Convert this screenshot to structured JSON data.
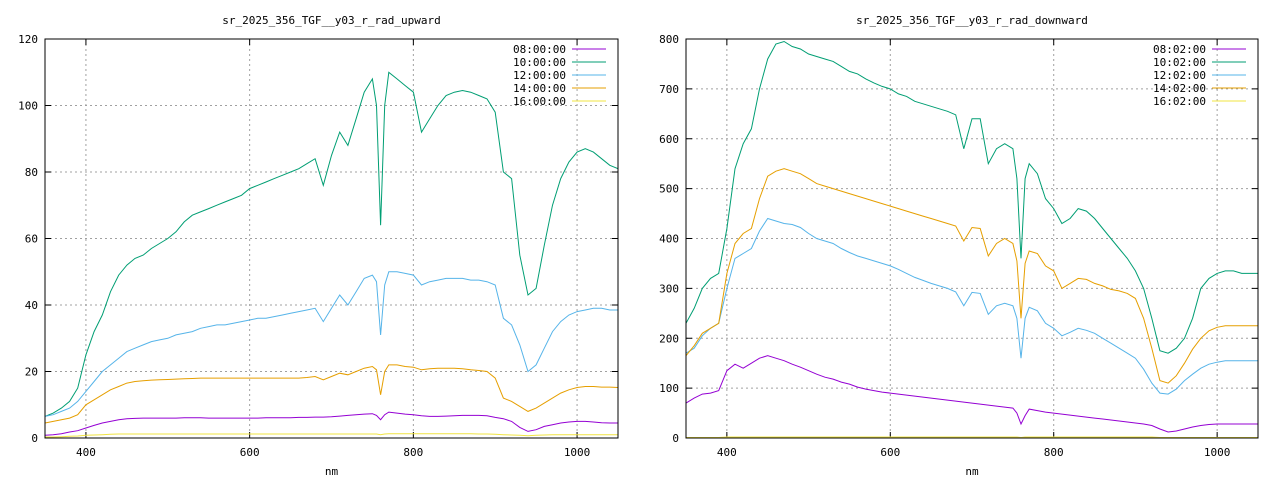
{
  "chart_data": [
    {
      "type": "line",
      "title": "sr_2025_356_TGF__y03_r_rad_upward",
      "xlabel": "nm",
      "ylabel": "",
      "xlim": [
        350,
        1050
      ],
      "ylim": [
        0,
        120
      ],
      "xticks": [
        400,
        600,
        800,
        1000
      ],
      "yticks": [
        0,
        20,
        40,
        60,
        80,
        100,
        120
      ],
      "grid": true,
      "legend_position": "top-right",
      "x": [
        350,
        360,
        370,
        380,
        390,
        400,
        410,
        420,
        430,
        440,
        450,
        460,
        470,
        480,
        490,
        500,
        510,
        520,
        530,
        540,
        550,
        560,
        570,
        580,
        590,
        600,
        610,
        620,
        630,
        640,
        650,
        660,
        670,
        680,
        690,
        700,
        710,
        720,
        730,
        740,
        750,
        755,
        760,
        765,
        770,
        780,
        790,
        800,
        810,
        820,
        830,
        840,
        850,
        860,
        870,
        880,
        890,
        900,
        910,
        920,
        930,
        940,
        950,
        960,
        970,
        980,
        990,
        1000,
        1010,
        1020,
        1030,
        1040,
        1050
      ],
      "series": [
        {
          "name": "08:00:00",
          "color": "#9400d3",
          "values": [
            0.8,
            1,
            1.3,
            1.8,
            2.2,
            3,
            3.8,
            4.5,
            5,
            5.5,
            5.8,
            5.9,
            6,
            6,
            6,
            6,
            6,
            6.1,
            6.1,
            6.1,
            6,
            6,
            6,
            6,
            6,
            6,
            6,
            6.1,
            6.1,
            6.1,
            6.1,
            6.2,
            6.2,
            6.3,
            6.3,
            6.4,
            6.6,
            6.8,
            7,
            7.2,
            7.3,
            6.8,
            5.5,
            7,
            7.8,
            7.5,
            7.2,
            7,
            6.7,
            6.5,
            6.5,
            6.6,
            6.7,
            6.8,
            6.8,
            6.8,
            6.7,
            6.2,
            5.8,
            5,
            3.2,
            2,
            2.5,
            3.5,
            4,
            4.5,
            4.8,
            5,
            5,
            4.8,
            4.6,
            4.5,
            4.5
          ]
        },
        {
          "name": "10:00:00",
          "color": "#009e73",
          "values": [
            6.5,
            7.5,
            9,
            11,
            15,
            25,
            32,
            37,
            44,
            49,
            52,
            54,
            55,
            57,
            58.5,
            60,
            62,
            65,
            67,
            68,
            69,
            70,
            71,
            72,
            73,
            75,
            76,
            77,
            78,
            79,
            80,
            81,
            82.5,
            84,
            76,
            85,
            92,
            88,
            96,
            104,
            108,
            100,
            64,
            100,
            110,
            108,
            106,
            104,
            92,
            96,
            100,
            103,
            104,
            104.5,
            104,
            103,
            102,
            98,
            80,
            78,
            55,
            43,
            45,
            58,
            70,
            78,
            83,
            86,
            87,
            86,
            84,
            82,
            81
          ]
        },
        {
          "name": "12:00:00",
          "color": "#56b4e9",
          "values": [
            6.5,
            7,
            8,
            9,
            11,
            14,
            17,
            20,
            22,
            24,
            26,
            27,
            28,
            29,
            29.5,
            30,
            31,
            31.5,
            32,
            33,
            33.5,
            34,
            34,
            34.5,
            35,
            35.5,
            36,
            36,
            36.5,
            37,
            37.5,
            38,
            38.5,
            39,
            35,
            39,
            43,
            40,
            44,
            48,
            49,
            47,
            31,
            46,
            50,
            50,
            49.5,
            49,
            46,
            47,
            47.5,
            48,
            48,
            48,
            47.5,
            47.5,
            47,
            46,
            36,
            34,
            28,
            20,
            22,
            27,
            32,
            35,
            37,
            38,
            38.5,
            39,
            39,
            38.5,
            38.5
          ]
        },
        {
          "name": "14:00:00",
          "color": "#e69f00",
          "values": [
            4.5,
            5,
            5.5,
            6,
            7,
            10,
            11.5,
            13,
            14.5,
            15.5,
            16.5,
            17,
            17.2,
            17.4,
            17.5,
            17.6,
            17.7,
            17.8,
            17.9,
            18,
            18,
            18,
            18,
            18,
            18,
            18,
            18,
            18,
            18,
            18,
            18,
            18,
            18.2,
            18.5,
            17.5,
            18.5,
            19.5,
            19,
            20,
            21,
            21.5,
            20.5,
            13,
            20,
            22,
            22,
            21.5,
            21.3,
            20.5,
            20.8,
            21,
            21,
            21,
            20.8,
            20.5,
            20.3,
            20,
            18,
            12,
            11,
            9.5,
            8,
            9,
            10.5,
            12,
            13.5,
            14.5,
            15.2,
            15.5,
            15.5,
            15.3,
            15.3,
            15.2
          ]
        },
        {
          "name": "16:00:00",
          "color": "#f0e442",
          "values": [
            0.3,
            0.3,
            0.4,
            0.5,
            0.6,
            0.8,
            0.9,
            1,
            1.1,
            1.2,
            1.2,
            1.2,
            1.2,
            1.2,
            1.2,
            1.2,
            1.2,
            1.2,
            1.2,
            1.2,
            1.2,
            1.2,
            1.2,
            1.2,
            1.2,
            1.2,
            1.2,
            1.2,
            1.2,
            1.2,
            1.2,
            1.2,
            1.2,
            1.2,
            1.2,
            1.2,
            1.2,
            1.2,
            1.2,
            1.2,
            1.2,
            1.2,
            1,
            1.2,
            1.3,
            1.3,
            1.3,
            1.3,
            1.3,
            1.3,
            1.3,
            1.3,
            1.3,
            1.3,
            1.3,
            1.2,
            1.2,
            1.1,
            1,
            0.9,
            0.8,
            0.7,
            0.8,
            0.9,
            1,
            1,
            1,
            1,
            1,
            1,
            1,
            1,
            1
          ]
        }
      ]
    },
    {
      "type": "line",
      "title": "sr_2025_356_TGF__y03_r_rad_downward",
      "xlabel": "nm",
      "ylabel": "",
      "xlim": [
        350,
        1050
      ],
      "ylim": [
        0,
        800
      ],
      "xticks": [
        400,
        600,
        800,
        1000
      ],
      "yticks": [
        0,
        100,
        200,
        300,
        400,
        500,
        600,
        700,
        800
      ],
      "grid": true,
      "legend_position": "top-right",
      "x": [
        350,
        360,
        370,
        380,
        390,
        400,
        410,
        420,
        430,
        440,
        450,
        460,
        470,
        480,
        490,
        500,
        510,
        520,
        530,
        540,
        550,
        560,
        570,
        580,
        590,
        600,
        610,
        620,
        630,
        640,
        650,
        660,
        670,
        680,
        690,
        700,
        710,
        720,
        730,
        740,
        750,
        755,
        760,
        765,
        770,
        780,
        790,
        800,
        810,
        820,
        830,
        840,
        850,
        860,
        870,
        880,
        890,
        900,
        910,
        920,
        930,
        940,
        950,
        960,
        970,
        980,
        990,
        1000,
        1010,
        1020,
        1030,
        1040,
        1050
      ],
      "series": [
        {
          "name": "08:02:00",
          "color": "#9400d3",
          "values": [
            70,
            80,
            88,
            90,
            95,
            135,
            148,
            140,
            150,
            160,
            165,
            160,
            155,
            148,
            142,
            135,
            128,
            122,
            118,
            112,
            108,
            102,
            98,
            95,
            92,
            90,
            88,
            86,
            84,
            82,
            80,
            78,
            76,
            74,
            72,
            70,
            68,
            66,
            64,
            62,
            60,
            50,
            28,
            45,
            58,
            55,
            52,
            50,
            48,
            46,
            44,
            42,
            40,
            38,
            36,
            34,
            32,
            30,
            28,
            25,
            18,
            12,
            14,
            18,
            22,
            25,
            27,
            28,
            28,
            28,
            28,
            28,
            28
          ]
        },
        {
          "name": "10:02:00",
          "color": "#009e73",
          "values": [
            230,
            260,
            300,
            320,
            330,
            420,
            540,
            590,
            620,
            700,
            760,
            790,
            795,
            785,
            780,
            770,
            765,
            760,
            755,
            745,
            735,
            730,
            720,
            712,
            705,
            700,
            690,
            685,
            675,
            670,
            665,
            660,
            655,
            648,
            580,
            640,
            640,
            550,
            580,
            590,
            580,
            520,
            360,
            520,
            550,
            530,
            480,
            460,
            430,
            440,
            460,
            455,
            440,
            420,
            400,
            380,
            360,
            335,
            300,
            240,
            175,
            170,
            180,
            200,
            240,
            300,
            320,
            330,
            335,
            335,
            330,
            330,
            330
          ]
        },
        {
          "name": "12:02:00",
          "color": "#56b4e9",
          "values": [
            170,
            180,
            205,
            220,
            230,
            300,
            360,
            370,
            380,
            415,
            440,
            435,
            430,
            428,
            422,
            410,
            400,
            395,
            390,
            380,
            372,
            365,
            360,
            355,
            350,
            345,
            338,
            330,
            322,
            316,
            310,
            305,
            300,
            293,
            265,
            292,
            290,
            248,
            265,
            270,
            265,
            240,
            160,
            240,
            262,
            255,
            230,
            220,
            205,
            212,
            220,
            216,
            210,
            200,
            190,
            180,
            170,
            160,
            138,
            110,
            90,
            88,
            98,
            115,
            128,
            140,
            148,
            152,
            155,
            155,
            155,
            155,
            155
          ]
        },
        {
          "name": "14:02:00",
          "color": "#e69f00",
          "values": [
            165,
            185,
            210,
            220,
            230,
            330,
            390,
            410,
            420,
            480,
            525,
            535,
            540,
            535,
            530,
            520,
            510,
            505,
            500,
            495,
            490,
            485,
            480,
            475,
            470,
            465,
            460,
            455,
            450,
            445,
            440,
            435,
            430,
            425,
            395,
            422,
            420,
            365,
            390,
            400,
            390,
            355,
            240,
            350,
            375,
            370,
            345,
            335,
            300,
            310,
            320,
            318,
            310,
            305,
            298,
            295,
            290,
            280,
            240,
            180,
            115,
            110,
            125,
            150,
            178,
            200,
            215,
            222,
            225,
            225,
            225,
            225,
            225
          ]
        },
        {
          "name": "16:02:00",
          "color": "#f0e442",
          "values": [
            1,
            1,
            1,
            1,
            1,
            2,
            2,
            2,
            2,
            2,
            2,
            2,
            2,
            2,
            2,
            2,
            2,
            2,
            2,
            2,
            2,
            2,
            2,
            2,
            2,
            2,
            2,
            2,
            2,
            2,
            2,
            2,
            2,
            2,
            2,
            2,
            2,
            2,
            2,
            2,
            2,
            2,
            1,
            2,
            2,
            2,
            2,
            2,
            2,
            2,
            2,
            2,
            2,
            2,
            2,
            2,
            2,
            2,
            2,
            2,
            1,
            1,
            1,
            1,
            1,
            1,
            1,
            1,
            1,
            1,
            1,
            1,
            1
          ]
        }
      ]
    }
  ]
}
